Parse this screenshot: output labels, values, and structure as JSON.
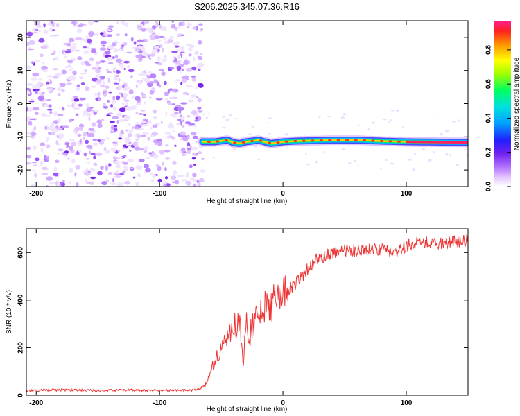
{
  "title": "S206.2025.345.07.36.R16",
  "chart_data": [
    {
      "type": "heatmap",
      "xlabel": "Height of straight line (km)",
      "ylabel": "Frequency (Hz)",
      "xlim": [
        -208,
        150
      ],
      "ylim": [
        -25,
        25
      ],
      "xticks": [
        -200,
        -100,
        0,
        100
      ],
      "yticks": [
        -20,
        -10,
        0,
        10,
        20
      ],
      "noise_region": {
        "x_range": [
          -208,
          -65
        ],
        "y_range": [
          -25,
          25
        ]
      },
      "signal_trace": {
        "x": [
          -65,
          -55,
          -45,
          -40,
          -35,
          -30,
          -25,
          -20,
          -15,
          -10,
          -5,
          0,
          10,
          20,
          40,
          60,
          80,
          100,
          150
        ],
        "frequency": [
          -11.5,
          -11.5,
          -11.0,
          -11.8,
          -12.0,
          -11.5,
          -11.3,
          -11.0,
          -11.5,
          -12.0,
          -11.8,
          -11.5,
          -11.3,
          -11.2,
          -11.0,
          -11.0,
          -11.3,
          -11.5,
          -11.7
        ]
      },
      "colorbar": {
        "label": "Normalized spectral amplitude",
        "range": [
          0.0,
          0.97
        ],
        "ticks": [
          "0.0",
          "0.2",
          "0.4",
          "0.6",
          "0.8"
        ]
      }
    },
    {
      "type": "line",
      "xlabel": "Height of straight line (km)",
      "ylabel": "SNR (10 * v/v)",
      "xlim": [
        -208,
        150
      ],
      "ylim": [
        0,
        700
      ],
      "xticks": [
        -200,
        -100,
        0,
        100
      ],
      "yticks": [
        0,
        200,
        400,
        600
      ],
      "series": [
        {
          "name": "SNR",
          "color": "#ee3333",
          "x": [
            -208,
            -180,
            -150,
            -120,
            -90,
            -70,
            -63,
            -58,
            -55,
            -50,
            -45,
            -42,
            -40,
            -35,
            -32,
            -30,
            -28,
            -25,
            -20,
            -15,
            -10,
            -5,
            0,
            5,
            10,
            15,
            20,
            25,
            30,
            40,
            50,
            60,
            70,
            80,
            90,
            100,
            110,
            120,
            130,
            140,
            150
          ],
          "values": [
            20,
            22,
            20,
            21,
            20,
            22,
            40,
            110,
            150,
            200,
            230,
            260,
            280,
            310,
            120,
            300,
            250,
            280,
            330,
            360,
            380,
            390,
            400,
            450,
            470,
            500,
            530,
            560,
            580,
            600,
            610,
            610,
            615,
            615,
            600,
            630,
            640,
            645,
            640,
            645,
            650
          ]
        }
      ]
    }
  ]
}
